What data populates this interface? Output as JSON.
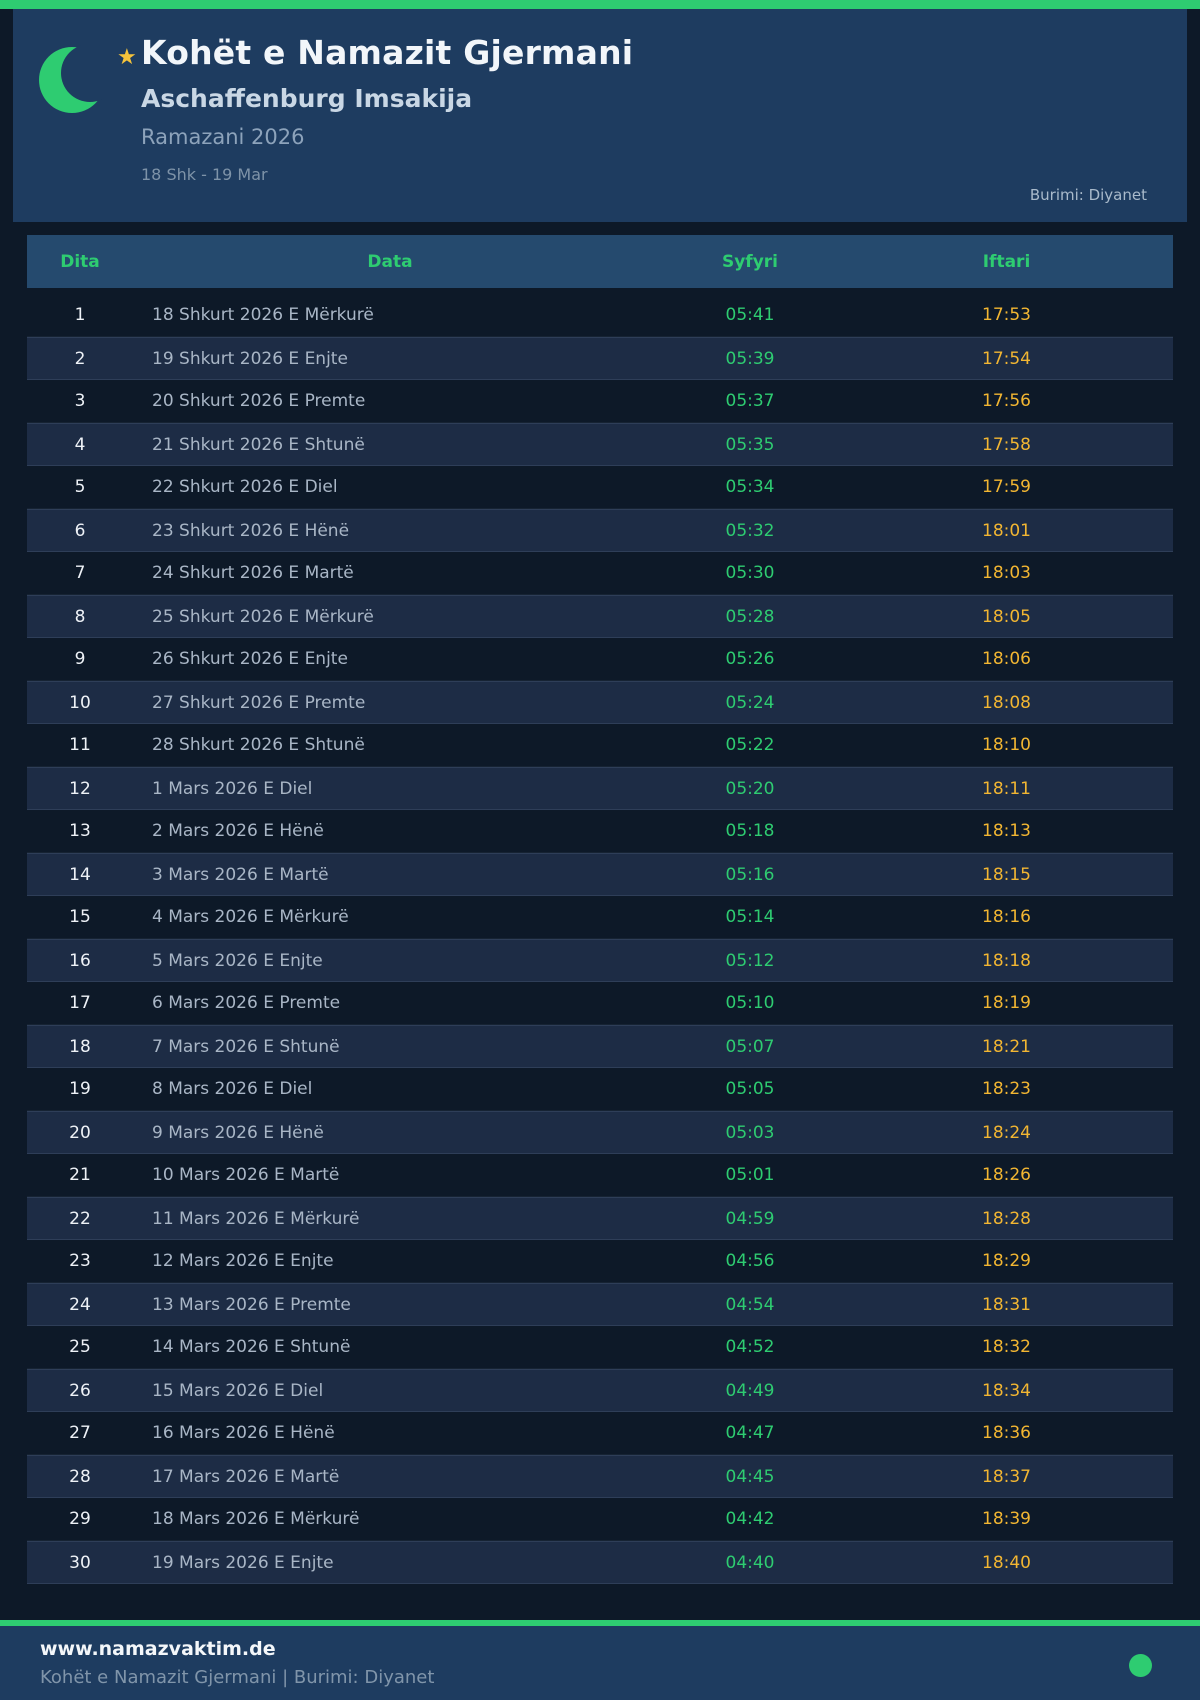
{
  "colors": {
    "accent_green": "#2ecc71",
    "iftari_orange": "#f2b632",
    "panel_navy": "#1e3c60",
    "page_bg": "#0d1928",
    "star_gold": "#f5c33b"
  },
  "header": {
    "title": "Kohët e Namazit Gjermani",
    "subtitle": "Aschaffenburg Imsakija",
    "season": "Ramazani 2026",
    "date_range": "18 Shk - 19 Mar",
    "source": "Burimi: Diyanet",
    "moon_icon": "crescent-moon",
    "star_icon": "star"
  },
  "table": {
    "columns": [
      "Dita",
      "Data",
      "Syfyri",
      "Iftari"
    ],
    "rows": [
      {
        "day": "1",
        "date": "18 Shkurt 2026 E Mërkurë",
        "syfyri": "05:41",
        "iftari": "17:53"
      },
      {
        "day": "2",
        "date": "19 Shkurt 2026 E Enjte",
        "syfyri": "05:39",
        "iftari": "17:54"
      },
      {
        "day": "3",
        "date": "20 Shkurt 2026 E Premte",
        "syfyri": "05:37",
        "iftari": "17:56"
      },
      {
        "day": "4",
        "date": "21 Shkurt 2026 E Shtunë",
        "syfyri": "05:35",
        "iftari": "17:58"
      },
      {
        "day": "5",
        "date": "22 Shkurt 2026 E Diel",
        "syfyri": "05:34",
        "iftari": "17:59"
      },
      {
        "day": "6",
        "date": "23 Shkurt 2026 E Hënë",
        "syfyri": "05:32",
        "iftari": "18:01"
      },
      {
        "day": "7",
        "date": "24 Shkurt 2026 E Martë",
        "syfyri": "05:30",
        "iftari": "18:03"
      },
      {
        "day": "8",
        "date": "25 Shkurt 2026 E Mërkurë",
        "syfyri": "05:28",
        "iftari": "18:05"
      },
      {
        "day": "9",
        "date": "26 Shkurt 2026 E Enjte",
        "syfyri": "05:26",
        "iftari": "18:06"
      },
      {
        "day": "10",
        "date": "27 Shkurt 2026 E Premte",
        "syfyri": "05:24",
        "iftari": "18:08"
      },
      {
        "day": "11",
        "date": "28 Shkurt 2026 E Shtunë",
        "syfyri": "05:22",
        "iftari": "18:10"
      },
      {
        "day": "12",
        "date": "1 Mars 2026 E Diel",
        "syfyri": "05:20",
        "iftari": "18:11"
      },
      {
        "day": "13",
        "date": "2 Mars 2026 E Hënë",
        "syfyri": "05:18",
        "iftari": "18:13"
      },
      {
        "day": "14",
        "date": "3 Mars 2026 E Martë",
        "syfyri": "05:16",
        "iftari": "18:15"
      },
      {
        "day": "15",
        "date": "4 Mars 2026 E Mërkurë",
        "syfyri": "05:14",
        "iftari": "18:16"
      },
      {
        "day": "16",
        "date": "5 Mars 2026 E Enjte",
        "syfyri": "05:12",
        "iftari": "18:18"
      },
      {
        "day": "17",
        "date": "6 Mars 2026 E Premte",
        "syfyri": "05:10",
        "iftari": "18:19"
      },
      {
        "day": "18",
        "date": "7 Mars 2026 E Shtunë",
        "syfyri": "05:07",
        "iftari": "18:21"
      },
      {
        "day": "19",
        "date": "8 Mars 2026 E Diel",
        "syfyri": "05:05",
        "iftari": "18:23"
      },
      {
        "day": "20",
        "date": "9 Mars 2026 E Hënë",
        "syfyri": "05:03",
        "iftari": "18:24"
      },
      {
        "day": "21",
        "date": "10 Mars 2026 E Martë",
        "syfyri": "05:01",
        "iftari": "18:26"
      },
      {
        "day": "22",
        "date": "11 Mars 2026 E Mërkurë",
        "syfyri": "04:59",
        "iftari": "18:28"
      },
      {
        "day": "23",
        "date": "12 Mars 2026 E Enjte",
        "syfyri": "04:56",
        "iftari": "18:29"
      },
      {
        "day": "24",
        "date": "13 Mars 2026 E Premte",
        "syfyri": "04:54",
        "iftari": "18:31"
      },
      {
        "day": "25",
        "date": "14 Mars 2026 E Shtunë",
        "syfyri": "04:52",
        "iftari": "18:32"
      },
      {
        "day": "26",
        "date": "15 Mars 2026 E Diel",
        "syfyri": "04:49",
        "iftari": "18:34"
      },
      {
        "day": "27",
        "date": "16 Mars 2026 E Hënë",
        "syfyri": "04:47",
        "iftari": "18:36"
      },
      {
        "day": "28",
        "date": "17 Mars 2026 E Martë",
        "syfyri": "04:45",
        "iftari": "18:37"
      },
      {
        "day": "29",
        "date": "18 Mars 2026 E Mërkurë",
        "syfyri": "04:42",
        "iftari": "18:39"
      },
      {
        "day": "30",
        "date": "19 Mars 2026 E Enjte",
        "syfyri": "04:40",
        "iftari": "18:40"
      }
    ]
  },
  "footer": {
    "url": "www.namazvaktim.de",
    "tagline": "Kohët e Namazit Gjermani | Burimi: Diyanet"
  }
}
